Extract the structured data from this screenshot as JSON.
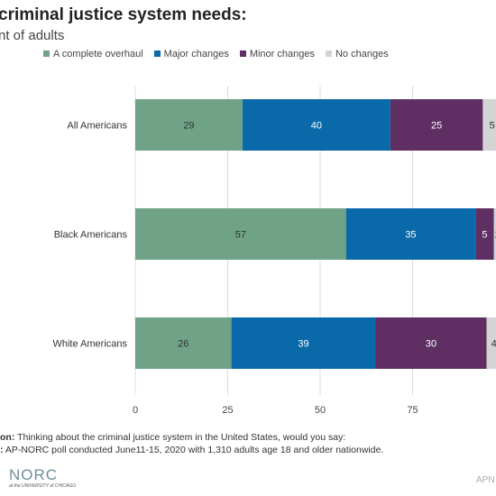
{
  "header": {
    "title": "criminal justice system needs:",
    "subtitle": "nt of adults"
  },
  "notes": {
    "question_label": "on:",
    "question_text": "Thinking about the criminal justice system in the United States, would you say:",
    "source_label": ":",
    "source_text": "AP-NORC poll conducted June11-15, 2020 with 1,310 adults age 18 and older nationwide."
  },
  "branding": {
    "logo": "NORC",
    "logo_sub": "at the UNIVERSITY of CHICAGO",
    "credit": "APN"
  },
  "chart_data": {
    "type": "bar",
    "orientation": "horizontal",
    "stacked": true,
    "categories": [
      "All Americans",
      "Black Americans",
      "White Americans"
    ],
    "series": [
      {
        "name": "A complete overhaul",
        "color": "#6fa287",
        "values": [
          29,
          57,
          26
        ]
      },
      {
        "name": "Major changes",
        "color": "#0a69a8",
        "values": [
          40,
          35,
          39
        ]
      },
      {
        "name": "Minor changes",
        "color": "#5f2f63",
        "values": [
          25,
          5,
          30
        ]
      },
      {
        "name": "No changes",
        "color": "#d4d4d4",
        "values": [
          5,
          2,
          4
        ]
      }
    ],
    "xticks": [
      0,
      25,
      50,
      75
    ],
    "xlim": [
      0,
      100
    ],
    "legend_position": "top",
    "grid": true
  }
}
